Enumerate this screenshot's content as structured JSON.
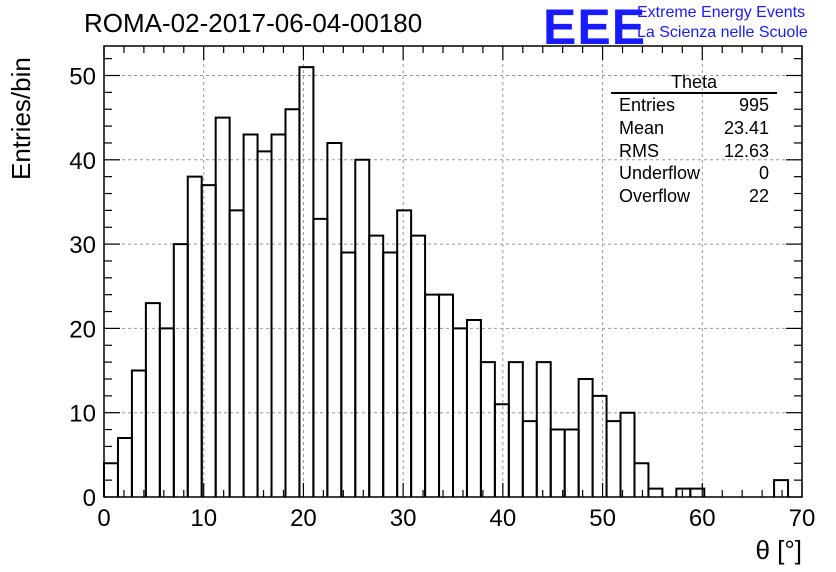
{
  "title": "ROMA-02-2017-06-04-00180",
  "logo": {
    "mark": "EEE",
    "line1": "Extreme Energy Events",
    "line2": "La Scienza nelle Scuole",
    "color": "#1a1aff"
  },
  "stats": {
    "name": "Theta",
    "rows": [
      {
        "label": "Entries",
        "value": "995"
      },
      {
        "label": "Mean",
        "value": "23.41"
      },
      {
        "label": "RMS",
        "value": "12.63"
      },
      {
        "label": "Underflow",
        "value": "0"
      },
      {
        "label": "Overflow",
        "value": "22"
      }
    ]
  },
  "chart_data": {
    "type": "histogram",
    "xlabel": "θ [°]",
    "ylabel": "Entries/bin",
    "xlim": [
      0,
      70
    ],
    "ylim": [
      0,
      53.5
    ],
    "grid": true,
    "bin_width": 1.4,
    "x_ticks": [
      0,
      10,
      20,
      30,
      40,
      50,
      60,
      70
    ],
    "y_ticks": [
      0,
      10,
      20,
      30,
      40,
      50
    ],
    "values": [
      4,
      7,
      15,
      23,
      20,
      30,
      38,
      37,
      45,
      34,
      43,
      41,
      43,
      46,
      51,
      33,
      42,
      29,
      40,
      31,
      29,
      34,
      31,
      24,
      24,
      20,
      21,
      16,
      11,
      16,
      9,
      16,
      8,
      8,
      14,
      12,
      9,
      10,
      4,
      1,
      0,
      1,
      1,
      0,
      0,
      0,
      0,
      0,
      2,
      0
    ]
  }
}
